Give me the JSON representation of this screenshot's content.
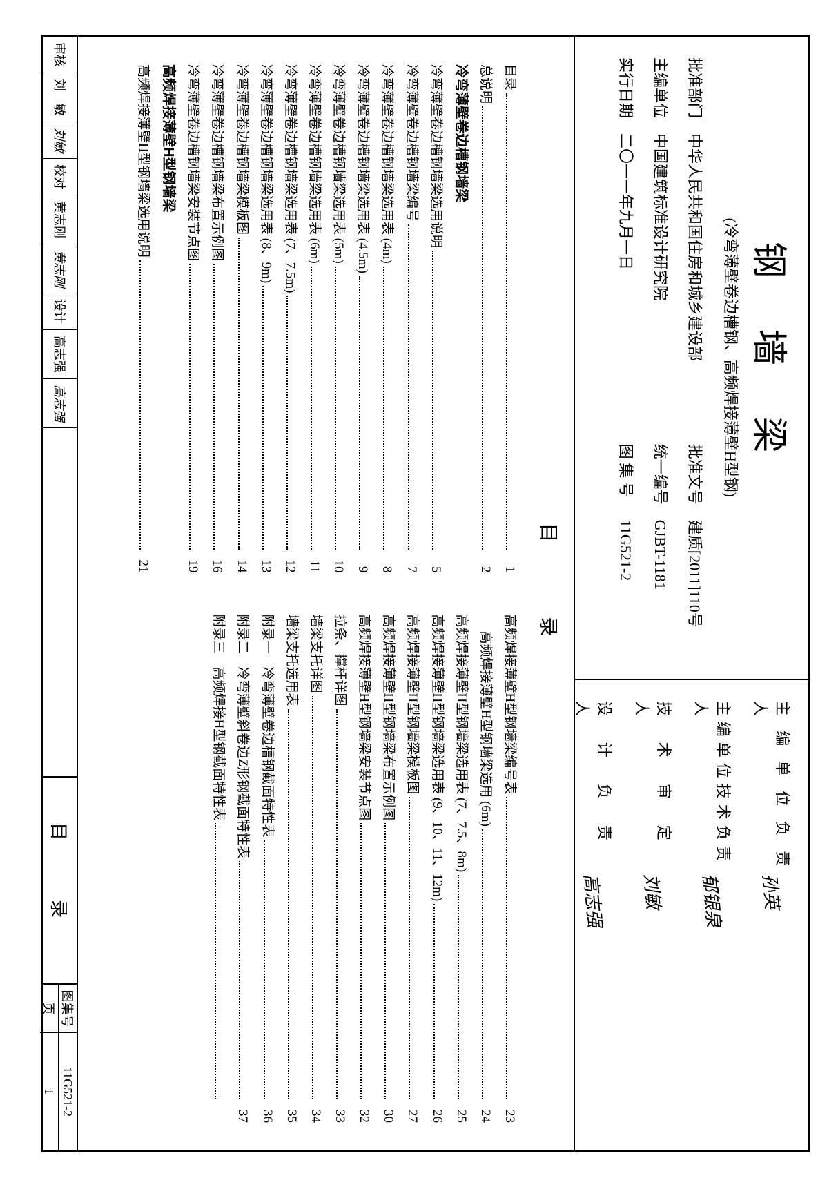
{
  "title": "钢 墙 梁",
  "subtitle": "(冷弯薄壁卷边槽钢、高频焊接薄壁H型钢)",
  "header_left": {
    "rows": [
      {
        "label": "批准部门",
        "value": "中华人民共和国住房和城乡建设部",
        "label2": "批准文号",
        "value2": "建质[2011]110号"
      },
      {
        "label": "主编单位",
        "value": "中国建筑标准设计研究院",
        "label2": "统一编号",
        "value2": "GJBT-1181"
      },
      {
        "label": "实行日期",
        "value": "二〇一一年九月一日",
        "label2": "图 集 号",
        "value2": "11G521-2"
      }
    ]
  },
  "header_right": {
    "rows": [
      {
        "label": "主 编 单 位 负 责 人",
        "sig": "孙英"
      },
      {
        "label": "主编单位技术负责人",
        "sig": "郁银泉"
      },
      {
        "label": "技　术　审　定　人",
        "sig": "刘敏"
      },
      {
        "label": "设　计　负　责　人",
        "sig": "高志强"
      }
    ]
  },
  "toc_title": "目　录",
  "left_entries": [
    {
      "text": "目录",
      "page": "1"
    },
    {
      "text": "总说明",
      "page": "2"
    },
    {
      "text": "冷弯薄壁卷边槽钢墙梁",
      "section": true
    },
    {
      "text": "冷弯薄壁卷边槽钢墙梁选用说明",
      "page": "5"
    },
    {
      "text": "冷弯薄壁卷边槽钢墙梁编号",
      "page": "7"
    },
    {
      "text": "冷弯薄壁卷边槽钢墙梁选用表 (4m)",
      "page": "8"
    },
    {
      "text": "冷弯薄壁卷边槽钢墙梁选用表 (4.5m)",
      "page": "9"
    },
    {
      "text": "冷弯薄壁卷边槽钢墙梁选用表 (5m)",
      "page": "10"
    },
    {
      "text": "冷弯薄壁卷边槽钢墙梁选用表 (6m)",
      "page": "11"
    },
    {
      "text": "冷弯薄壁卷边槽钢墙梁选用表 (7、7.5m)",
      "page": "12"
    },
    {
      "text": "冷弯薄壁卷边槽钢墙梁选用表 (8、9m)",
      "page": "13"
    },
    {
      "text": "冷弯薄壁卷边槽钢墙梁模板图",
      "page": "14"
    },
    {
      "text": "冷弯薄壁卷边槽钢墙梁布置示例图",
      "page": "16"
    },
    {
      "text": "冷弯薄壁卷边槽钢墙梁安装节点图",
      "page": "19"
    },
    {
      "text": "高频焊接薄壁H型钢墙梁",
      "section": true
    },
    {
      "text": "高频焊接薄壁H型钢墙梁选用说明",
      "page": "21"
    }
  ],
  "right_entries": [
    {
      "text": "高频焊接薄壁H型钢墙梁编号表",
      "page": "23"
    },
    {
      "text": "高频焊接薄壁H型钢墙梁选用 (6m)",
      "page": "24",
      "indent": true
    },
    {
      "text": "高频焊接薄壁H型钢墙梁选用表 (7、7.5、8m)",
      "page": "25"
    },
    {
      "text": "高频焊接薄壁H型钢墙梁选用表 (9、10、11、12m)",
      "page": "26"
    },
    {
      "text": "高频焊接薄壁H型钢墙梁模板图",
      "page": "27"
    },
    {
      "text": "高频焊接薄壁H型钢墙梁布置示例图",
      "page": "30"
    },
    {
      "text": "高频焊接薄壁H型钢墙梁安装节点图",
      "page": "32"
    },
    {
      "text": "拉条、撑杆详图",
      "page": "33"
    },
    {
      "text": "墙梁支托详图",
      "page": "34"
    },
    {
      "text": "墙梁支托选用表",
      "page": "35"
    },
    {
      "text": "附录一　冷弯薄壁卷边槽钢截面特性表",
      "page": "36"
    },
    {
      "text": "附录二　冷弯薄壁斜卷边Z形钢截面特性表",
      "page": "37"
    },
    {
      "text": "附录三　高频焊接H型钢截面特性表",
      "page": ""
    }
  ],
  "footer": {
    "cells": [
      {
        "label": "审核",
        "val": "刘　敏"
      },
      {
        "sig": "刘敏"
      },
      {
        "label": "校对",
        "val": "黄志刚"
      },
      {
        "sig": "黄志刚"
      },
      {
        "label": "设计",
        "val": "高志强"
      },
      {
        "sig": "高志强"
      }
    ],
    "center": "目　录",
    "right_top_label": "图集号",
    "right_top_val": "11G521-2",
    "right_bot_label": "页",
    "right_bot_val": "1"
  }
}
